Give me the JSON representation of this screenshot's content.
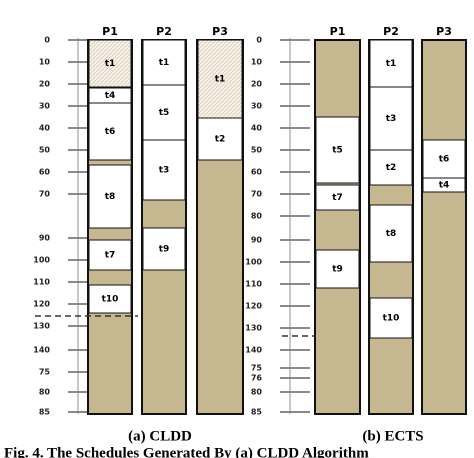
{
  "panels": [
    {
      "caption": "(a) CLDD",
      "axis_labels": [
        "0",
        "10",
        "20",
        "30",
        "40",
        "50",
        "60",
        "70",
        "90",
        "100",
        "110",
        "120",
        "130",
        "140",
        "75",
        "80",
        "85"
      ],
      "processors": [
        {
          "name": "P1",
          "tasks": [
            "t1",
            "t4",
            "t6",
            "t8",
            "t7",
            "t10"
          ]
        },
        {
          "name": "P2",
          "tasks": [
            "t1",
            "t5",
            "t3",
            "t9"
          ]
        },
        {
          "name": "P3",
          "tasks": [
            "t1",
            "t2"
          ]
        }
      ]
    },
    {
      "caption": "(b) ECTS",
      "axis_labels": [
        "0",
        "10",
        "20",
        "30",
        "40",
        "50",
        "60",
        "70",
        "80",
        "90",
        "100",
        "110",
        "120",
        "130",
        "140",
        "75",
        "76",
        "80",
        "85"
      ],
      "processors": [
        {
          "name": "P1",
          "tasks": [
            "t5",
            "t7",
            "t9"
          ]
        },
        {
          "name": "P2",
          "tasks": [
            "t1",
            "t3",
            "t2",
            "t8",
            "t10"
          ]
        },
        {
          "name": "P3",
          "tasks": [
            "t6",
            "t4"
          ]
        }
      ]
    }
  ],
  "figure_caption": "Fig. 4. The Schedules Generated By (a) CLDD Algorithm"
}
